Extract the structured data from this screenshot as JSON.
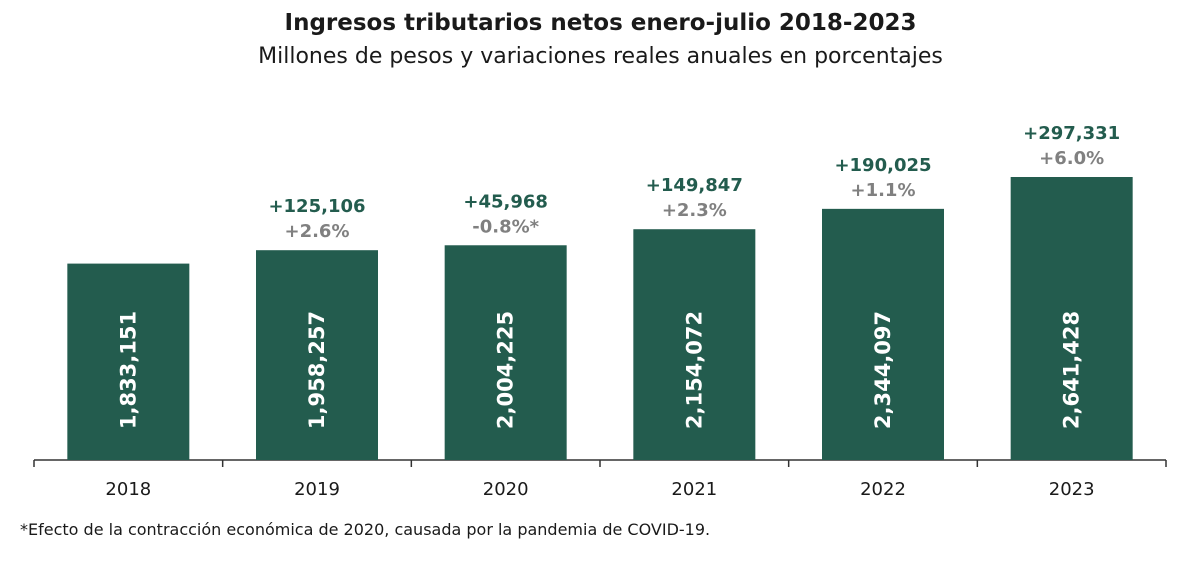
{
  "title": "Ingresos tributarios netos enero-julio 2018-2023",
  "subtitle": "Millones de pesos y variaciones reales anuales en porcentajes",
  "footnote": "*Efecto de la contracción económica de 2020, causada por la pandemia de COVID-19.",
  "colors": {
    "bar": "#235c4e",
    "bar_label": "#ffffff",
    "diff": "#235c4e",
    "pct": "#808080",
    "axis": "#333333"
  },
  "chart_data": {
    "type": "bar",
    "categories": [
      "2018",
      "2019",
      "2020",
      "2021",
      "2022",
      "2023"
    ],
    "values": [
      1833151,
      1958257,
      2004225,
      2154072,
      2344097,
      2641428
    ],
    "value_labels": [
      "1,833,151",
      "1,958,257",
      "2,004,225",
      "2,154,072",
      "2,344,097",
      "2,641,428"
    ],
    "annual_diff": [
      "",
      "+125,106",
      "+45,968",
      "+149,847",
      "+190,025",
      "+297,331"
    ],
    "real_change": [
      "",
      "+2.6%",
      "-0.8%*",
      "+2.3%",
      "+1.1%",
      "+6.0%"
    ],
    "title": "Ingresos tributarios netos enero-julio 2018-2023",
    "subtitle": "Millones de pesos y variaciones reales anuales en porcentajes",
    "xlabel": "",
    "ylabel": "",
    "grid": false,
    "legend": "none"
  }
}
